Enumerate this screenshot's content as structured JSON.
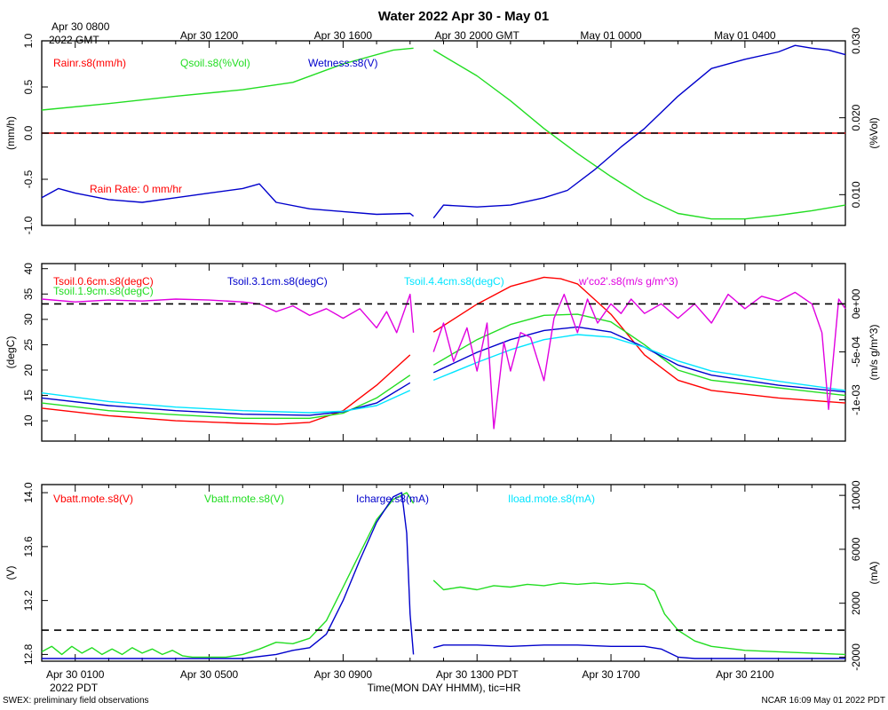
{
  "page": {
    "title": "Water 2022 Apr 30 - May 01",
    "top_date_line1": "Apr 30 0800",
    "top_date_line2": "2022 GMT",
    "top_axis_ticks": [
      "Apr 30 1200",
      "Apr 30 1600",
      "Apr 30 2000 GMT",
      "May 01 0000",
      "May 01 0400"
    ],
    "bottom_axis_ticks": [
      "Apr 30 0100",
      "Apr 30 0500",
      "Apr 30 0900",
      "Apr 30 1300 PDT",
      "Apr 30 1700",
      "Apr 30 2100"
    ],
    "bottom_year": "2022 PDT",
    "x_label": "Time(MON DAY HHMM), tic=HR",
    "footer_left": "SWEX: preliminary field observations",
    "footer_right": "NCAR 16:09 May 01 2022 PDT"
  },
  "colors": {
    "red": "#ff0000",
    "green": "#22dd22",
    "blue": "#0000cc",
    "cyan": "#00e5ff",
    "magenta": "#e000e0",
    "black": "#000000"
  },
  "chart_data": [
    {
      "type": "line",
      "panel": "water",
      "x_unit": "hours since Apr 30 0000 PDT",
      "xlim": [
        0,
        24
      ],
      "ylabel_left": "(mm/h)",
      "ylim_left": [
        -1.0,
        1.0
      ],
      "yticks_left": [
        "1.0",
        "0.5",
        "0.0",
        "-0.5",
        "-1.0"
      ],
      "ylabel_right": "(%Vol)",
      "ylim_right": [
        0.006,
        0.03
      ],
      "yticks_right": [
        "0.030",
        "0.020",
        "0.010"
      ],
      "legend": [
        "Rainr.s8(mm/h)",
        "Qsoil.s8(%Vol)",
        "Wetness.s8(V)"
      ],
      "annotation": "Rain Rate: 0 mm/hr",
      "dashed_zero_left": 0.0,
      "series": [
        {
          "name": "Rainr.s8(mm/h)",
          "axis": "left",
          "color": "red",
          "x": [
            0,
            24
          ],
          "y": [
            0,
            0
          ]
        },
        {
          "name": "Qsoil.s8(%Vol)",
          "axis": "left",
          "color": "green",
          "x": [
            0,
            2,
            4,
            6,
            7.5,
            9,
            10.5,
            11.1,
            null,
            11.7,
            13,
            14,
            15,
            16,
            17,
            18,
            19,
            20,
            21,
            22,
            23,
            24
          ],
          "y": [
            0.25,
            0.32,
            0.4,
            0.47,
            0.55,
            0.75,
            0.9,
            0.92,
            null,
            0.9,
            0.62,
            0.35,
            0.05,
            -0.22,
            -0.47,
            -0.7,
            -0.87,
            -0.93,
            -0.93,
            -0.89,
            -0.84,
            -0.78
          ]
        },
        {
          "name": "Wetness.s8(V)",
          "axis": "left",
          "color": "blue",
          "x": [
            0,
            0.5,
            1,
            2,
            3,
            4,
            5,
            6,
            6.5,
            7,
            8,
            9,
            10,
            11,
            11.1,
            null,
            11.7,
            12,
            13,
            14,
            15,
            15.7,
            16.5,
            17.3,
            18,
            19,
            20,
            21,
            22,
            22.5,
            23,
            23.5,
            24
          ],
          "y": [
            -0.7,
            -0.6,
            -0.65,
            -0.72,
            -0.75,
            -0.7,
            -0.65,
            -0.6,
            -0.55,
            -0.75,
            -0.82,
            -0.85,
            -0.88,
            -0.87,
            -0.9,
            null,
            -0.92,
            -0.78,
            -0.8,
            -0.78,
            -0.7,
            -0.62,
            -0.4,
            -0.15,
            0.05,
            0.4,
            0.7,
            0.8,
            0.88,
            0.95,
            0.92,
            0.9,
            0.85
          ]
        }
      ]
    },
    {
      "type": "line",
      "panel": "temperature",
      "x_unit": "hours since Apr 30 0000 PDT",
      "xlim": [
        0,
        24
      ],
      "ylabel_left": "(degC)",
      "ylim_left": [
        6,
        41
      ],
      "yticks_left": [
        "40",
        "35",
        "30",
        "25",
        "20",
        "15",
        "10"
      ],
      "ylabel_right": "(m/s g/m^3)",
      "ylim_right": [
        -0.00143,
        0.00042
      ],
      "yticks_right": [
        "0e+00",
        "-5e-04",
        "-1e-03"
      ],
      "legend": [
        "Tsoil.0.6cm.s8(degC)",
        "Tsoil.1.9cm.s8(degC)",
        "Tsoil.3.1cm.s8(degC)",
        "Tsoil.4.4cm.s8(degC)",
        "w'co2'.s8(m/s g/m^3)"
      ],
      "dashed_zero_right": 0.0,
      "series": [
        {
          "name": "Tsoil.0.6cm.s8(degC)",
          "axis": "left",
          "color": "red",
          "x": [
            0,
            2,
            4,
            6,
            7,
            8,
            9,
            10,
            11,
            null,
            11.7,
            13,
            14,
            15,
            15.5,
            16,
            17,
            18,
            19,
            20,
            22,
            24
          ],
          "y": [
            12.5,
            11,
            10,
            9.5,
            9.3,
            9.7,
            12,
            17,
            23,
            null,
            27.5,
            33,
            36.5,
            38.3,
            38,
            37,
            31,
            23,
            18,
            16,
            14.5,
            13.5
          ]
        },
        {
          "name": "Tsoil.1.9cm.s8(degC)",
          "axis": "left",
          "color": "green",
          "x": [
            0,
            2,
            4,
            6,
            8,
            9,
            10,
            11,
            null,
            11.7,
            13,
            14,
            15,
            16,
            17,
            18,
            19,
            20,
            22,
            24
          ],
          "y": [
            13.5,
            12,
            11.2,
            10.5,
            10.5,
            11.5,
            14.5,
            19,
            null,
            21,
            26,
            29,
            30.8,
            31,
            29.5,
            25,
            20,
            18,
            16.5,
            15
          ]
        },
        {
          "name": "Tsoil.3.1cm.s8(degC)",
          "axis": "left",
          "color": "blue",
          "x": [
            0,
            2,
            4,
            6,
            8,
            9,
            10,
            11,
            null,
            11.7,
            13,
            14,
            15,
            16,
            17,
            18,
            19,
            20,
            22,
            24
          ],
          "y": [
            14.5,
            13,
            12,
            11.3,
            11.1,
            11.8,
            13.5,
            17.5,
            null,
            19.5,
            23.5,
            26,
            27.8,
            28.5,
            27.5,
            24.5,
            21,
            19,
            17,
            15.7
          ]
        },
        {
          "name": "Tsoil.4.4cm.s8(degC)",
          "axis": "left",
          "color": "cyan",
          "x": [
            0,
            2,
            4,
            6,
            8,
            9,
            10,
            11,
            null,
            11.7,
            13,
            14,
            15,
            16,
            17,
            18,
            19,
            20,
            22,
            24
          ],
          "y": [
            15.5,
            13.8,
            12.7,
            12,
            11.6,
            11.9,
            13,
            16,
            null,
            18,
            21.5,
            24,
            26,
            27,
            26.5,
            24.5,
            21.8,
            19.8,
            17.8,
            16
          ]
        },
        {
          "name": "w'co2'.s8(m/s g/m^3)",
          "axis": "right",
          "color": "magenta",
          "x": [
            0,
            1,
            2,
            3,
            4,
            5,
            6,
            6.5,
            7,
            7.5,
            8,
            8.5,
            9,
            9.5,
            10,
            10.3,
            10.6,
            11,
            11.1,
            null,
            11.7,
            12,
            12.3,
            12.7,
            13,
            13.3,
            13.5,
            13.8,
            14,
            14.3,
            14.6,
            15,
            15.3,
            15.6,
            16,
            16.3,
            16.6,
            17,
            17.3,
            17.6,
            18,
            18.5,
            19,
            19.5,
            20,
            20.5,
            21,
            21.5,
            22,
            22.5,
            23,
            23.3,
            23.5,
            23.8,
            24
          ],
          "y": [
            5e-05,
            2e-05,
            4e-05,
            3e-05,
            5e-05,
            4e-05,
            2e-05,
            0.0,
            -8e-05,
            -2e-05,
            -0.00012,
            -5e-05,
            -0.00015,
            -5e-05,
            -0.00025,
            -8e-05,
            -0.0003,
            0.0001,
            -0.0003,
            null,
            -0.0005,
            -0.0002,
            -0.0006,
            -0.00025,
            -0.0007,
            -0.0002,
            -0.0013,
            -0.0004,
            -0.0007,
            -0.0003,
            -0.00035,
            -0.0008,
            -0.00015,
            0.0001,
            -0.0003,
            5e-05,
            -0.0002,
            0.0,
            -0.0001,
            5e-05,
            -0.0001,
            0.0,
            -0.00015,
            0.0,
            -0.0002,
            0.0001,
            -5e-05,
            8e-05,
            3e-05,
            0.00012,
            0.0,
            -0.0003,
            -0.0011,
            5e-05,
            -5e-05
          ]
        }
      ]
    },
    {
      "type": "line",
      "panel": "power",
      "x_unit": "hours since Apr 30 0000 PDT",
      "xlim": [
        0,
        24
      ],
      "ylabel_left": "(V)",
      "ylim_left": [
        12.75,
        14.06
      ],
      "yticks_left": [
        "14.0",
        "13.6",
        "13.2",
        "12.8"
      ],
      "ylabel_right": "(mA)",
      "ylim_right": [
        -2300,
        10800
      ],
      "yticks_right": [
        "10000",
        "6000",
        "2000",
        "-2000"
      ],
      "legend": [
        "Vbatt.mote.s8(V)",
        "Vbatt.mote.s8(V)",
        "Icharge.s8(mA)",
        "Iload.mote.s8(mA)"
      ],
      "dashed_zero_right": 0,
      "series": [
        {
          "name": "Vbatt.mote.s8(V)",
          "axis": "left",
          "color": "green",
          "x": [
            0,
            0.3,
            0.6,
            0.9,
            1.2,
            1.5,
            1.8,
            2.1,
            2.4,
            2.7,
            3.0,
            3.3,
            3.6,
            3.9,
            4.2,
            4.5,
            5.0,
            5.5,
            6.0,
            6.5,
            7.0,
            7.5,
            8.0,
            8.5,
            9.0,
            9.5,
            10.0,
            10.5,
            10.9,
            11.1,
            null,
            11.7,
            12.0,
            12.5,
            13.0,
            13.5,
            14.0,
            14.5,
            15.0,
            15.5,
            16.0,
            16.5,
            17.0,
            17.5,
            18.0,
            18.3,
            18.6,
            19.0,
            19.5,
            20.0,
            21.0,
            22.0,
            23.0,
            24.0
          ],
          "y": [
            12.82,
            12.86,
            12.8,
            12.86,
            12.81,
            12.85,
            12.8,
            12.84,
            12.8,
            12.85,
            12.81,
            12.84,
            12.8,
            12.83,
            12.79,
            12.78,
            12.78,
            12.78,
            12.8,
            12.84,
            12.89,
            12.88,
            12.92,
            13.05,
            13.3,
            13.55,
            13.8,
            13.95,
            14.0,
            13.92,
            null,
            13.35,
            13.28,
            13.3,
            13.28,
            13.31,
            13.3,
            13.32,
            13.31,
            13.33,
            13.32,
            13.33,
            13.32,
            13.33,
            13.32,
            13.27,
            13.1,
            12.98,
            12.9,
            12.86,
            12.83,
            12.82,
            12.81,
            12.8
          ]
        },
        {
          "name": "Icharge.s8(mA)",
          "axis": "left",
          "color": "blue",
          "x": [
            0,
            1,
            2,
            3,
            4,
            5,
            6,
            7,
            7.5,
            8,
            8.5,
            9,
            9.5,
            10,
            10.5,
            10.75,
            10.9,
            11.0,
            11.1,
            null,
            11.7,
            12,
            13,
            14,
            15,
            16,
            17,
            18,
            18.5,
            19,
            19.5,
            20,
            21,
            22,
            23,
            24
          ],
          "y": [
            12.77,
            12.77,
            12.77,
            12.77,
            12.77,
            12.77,
            12.77,
            12.8,
            12.83,
            12.85,
            12.95,
            13.2,
            13.5,
            13.78,
            13.97,
            14.0,
            13.7,
            13.1,
            12.8,
            null,
            12.85,
            12.87,
            12.87,
            12.86,
            12.87,
            12.87,
            12.86,
            12.86,
            12.84,
            12.78,
            12.77,
            12.77,
            12.77,
            12.77,
            12.77,
            12.77
          ]
        }
      ]
    }
  ]
}
